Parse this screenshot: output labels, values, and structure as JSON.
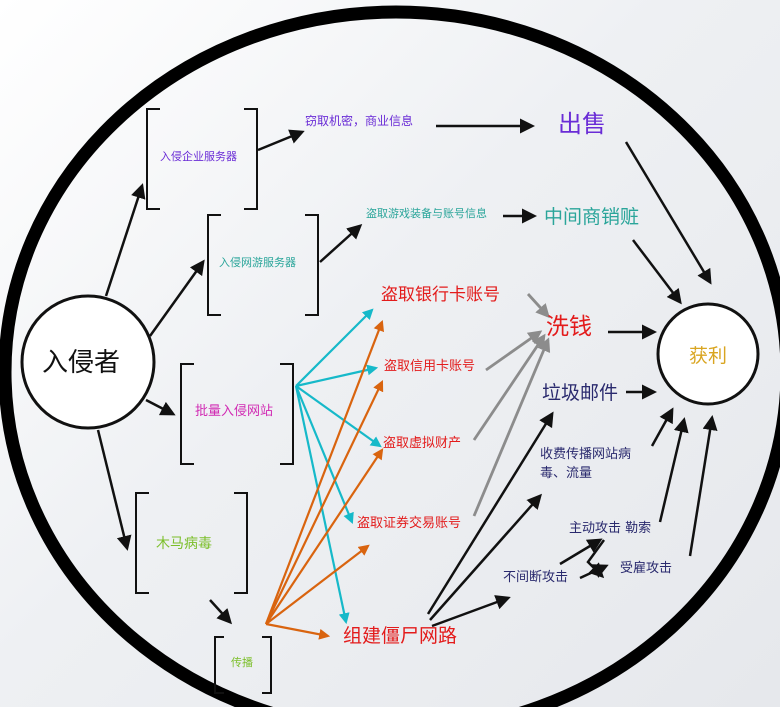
{
  "nodes": {
    "intruder": "入侵者",
    "profit": "获利",
    "enterprise_servers": "入侵企业服务器",
    "game_servers": "入侵网游服务器",
    "mass_websites": "批量入侵网站",
    "trojan": "木马病毒",
    "spread": "传播",
    "steal_secrets": "窃取机密，商业信息",
    "steal_game_items": "盗取游戏装备与账号信息",
    "sell": "出售",
    "middleman": "中间商销赃",
    "steal_bank_card": "盗取银行卡账号",
    "steal_credit_card": "盗取信用卡账号",
    "steal_virtual_assets": "盗取虚拟财产",
    "steal_securities": "盗取证券交易账号",
    "botnet": "组建僵尸网路",
    "money_laundering": "洗钱",
    "spam": "垃圾邮件",
    "paid_spread_line1": "收费传播网站病",
    "paid_spread_line2": "毒、流量",
    "continuous_attack": "不间断攻击",
    "active_attack": "主动攻击 勒索",
    "hired_attack": "受雇攻击"
  },
  "colors": {
    "black": "#111111",
    "purple": "#6a2cd6",
    "teal": "#2aa59a",
    "red": "#e31b1b",
    "magenta": "#d12ab3",
    "green": "#7cbf2a",
    "gold": "#d9a521",
    "navy": "#2a2a6e",
    "cyan_arrow": "#16b9c9",
    "orange_arrow": "#d9640f",
    "gray_arrow": "#8c8c8c"
  }
}
